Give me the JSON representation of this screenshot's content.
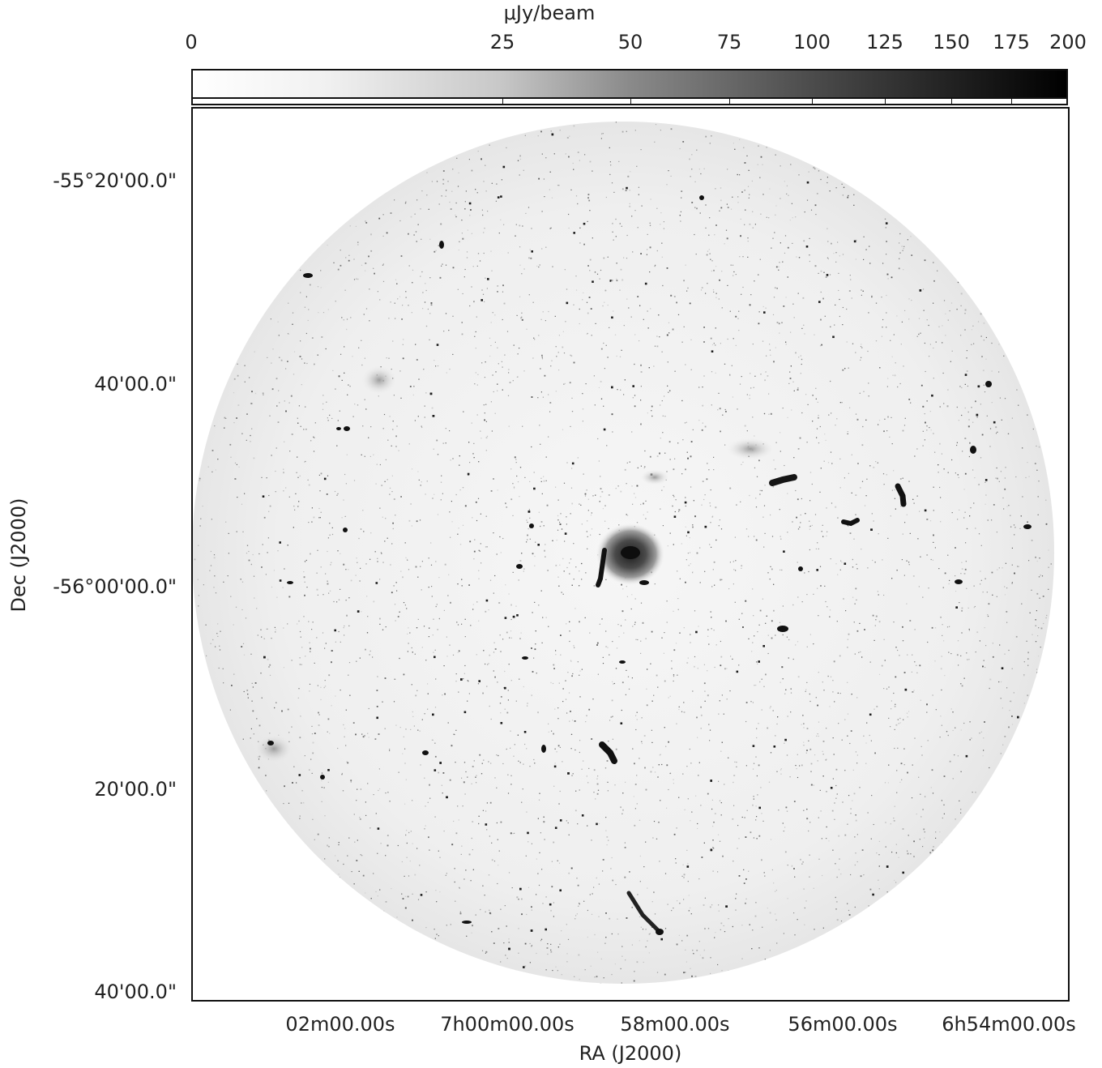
{
  "colorbar": {
    "title": "μJy/beam",
    "ticks": [
      "0",
      "25",
      "50",
      "75",
      "100",
      "125",
      "150",
      "175",
      "200"
    ],
    "tick_values": [
      0,
      25,
      50,
      75,
      100,
      125,
      150,
      175,
      200
    ],
    "color_low": "#ffffff",
    "color_high": "#000000"
  },
  "axes": {
    "xlabel": "RA (J2000)",
    "ylabel": "Dec (J2000)",
    "xticks": [
      "02m00.00s",
      "7h00m00.00s",
      "58m00.00s",
      "56m00.00s",
      "6h54m00.00s"
    ],
    "yticks": [
      "-55°20'00.0\"",
      "40'00.0\"",
      "-56°00'00.0\"",
      "20'00.0\"",
      "40'00.0\""
    ]
  },
  "image": {
    "description_colors": {
      "background": "#ffffff",
      "field": "#f3f3f3",
      "source": "#111111"
    }
  }
}
